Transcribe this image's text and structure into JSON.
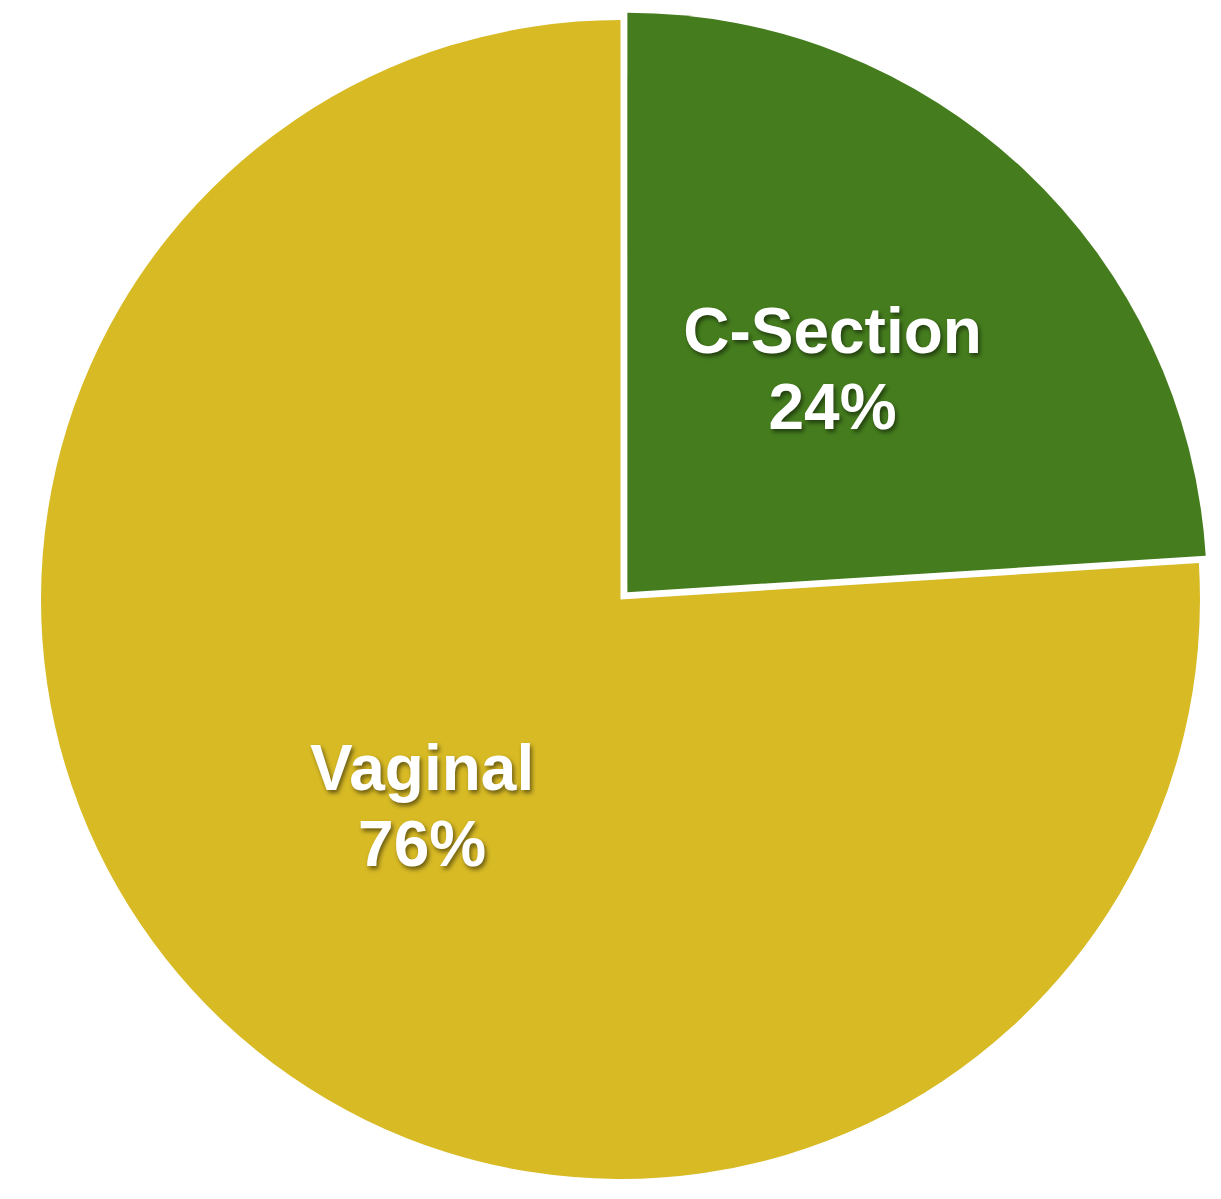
{
  "chart_data": {
    "type": "pie",
    "categories": [
      "C-Section",
      "Vaginal"
    ],
    "values": [
      24,
      76
    ],
    "value_labels": [
      "24%",
      "76%"
    ],
    "colors": [
      "#457d1e",
      "#d8ba25"
    ],
    "legend": false
  }
}
